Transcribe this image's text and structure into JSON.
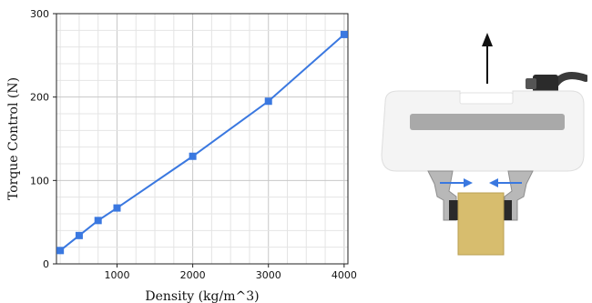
{
  "chart_data": {
    "type": "line",
    "xlabel": "Density (kg/m^3)",
    "ylabel": "Torque Control (N)",
    "xlim": [
      200,
      4050
    ],
    "ylim": [
      0,
      300
    ],
    "grid": true,
    "series": [
      {
        "x": [
          250,
          500,
          750,
          1000,
          2000,
          3000,
          4000
        ],
        "y": [
          16,
          34,
          52,
          67,
          129,
          195,
          275
        ],
        "color": "#3a78e0",
        "marker": "square"
      }
    ],
    "x_ticks": [
      {
        "value": 1000,
        "label": "1000"
      },
      {
        "value": 2000,
        "label": "2000"
      },
      {
        "value": 3000,
        "label": "3000"
      },
      {
        "value": 4000,
        "label": "4000"
      }
    ],
    "y_ticks": [
      {
        "value": 0,
        "label": "0"
      },
      {
        "value": 100,
        "label": "100"
      },
      {
        "value": 200,
        "label": "200"
      },
      {
        "value": 300,
        "label": "300"
      }
    ]
  },
  "illustration": {
    "subject": "robotic-gripper-holding-block",
    "colors": {
      "housing": "#f3f3f3",
      "window": "#a9a9a9",
      "block": "#d7bd6e",
      "force_arrows": "#3a78e0",
      "lift_arrow": "#111111"
    }
  }
}
